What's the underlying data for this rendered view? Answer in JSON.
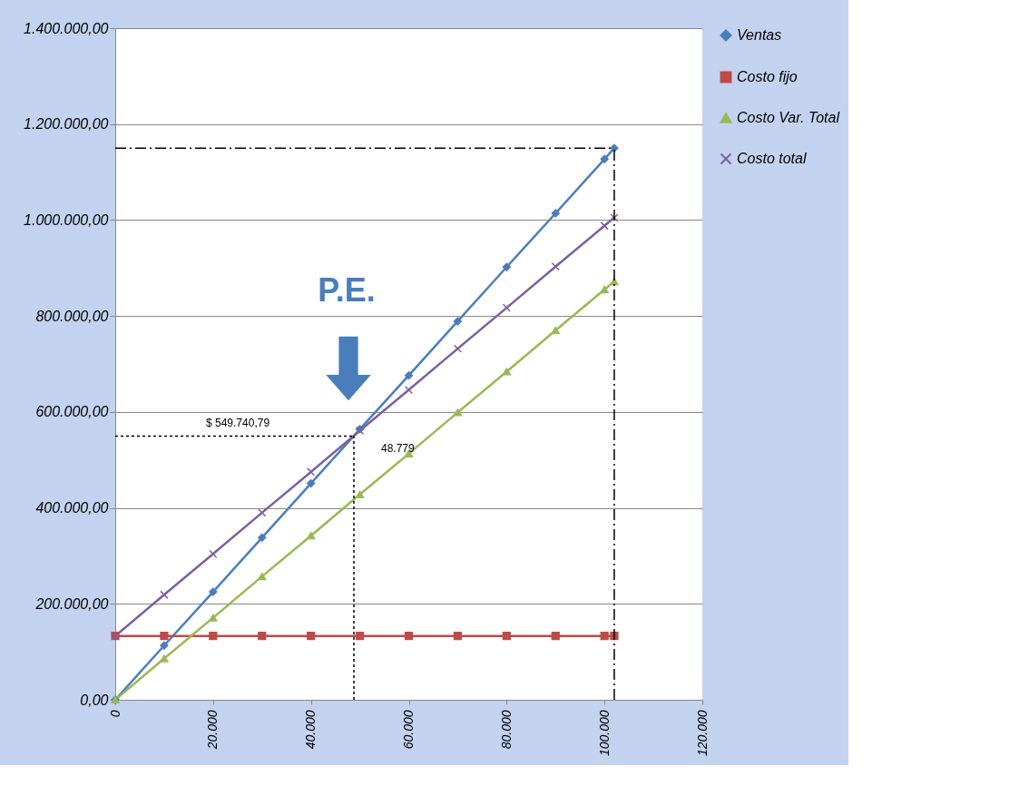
{
  "chart_data": {
    "type": "line",
    "x": [
      0,
      10000,
      20000,
      30000,
      40000,
      50000,
      60000,
      70000,
      80000,
      90000,
      100000,
      102000
    ],
    "series": [
      {
        "name": "Ventas",
        "color": "#4a7ebb",
        "marker": "diamond",
        "values": [
          0,
          113000,
          225000,
          338000,
          451000,
          564000,
          676000,
          789000,
          902000,
          1014000,
          1127000,
          1150000
        ]
      },
      {
        "name": "Costo fijo",
        "color": "#be4b48",
        "marker": "square",
        "values": [
          133000,
          133000,
          133000,
          133000,
          133000,
          133000,
          133000,
          133000,
          133000,
          133000,
          133000,
          133000
        ]
      },
      {
        "name": "Costo Var. Total",
        "color": "#98b954",
        "marker": "triangle",
        "values": [
          0,
          86000,
          171000,
          257000,
          342000,
          428000,
          513000,
          599000,
          684000,
          770000,
          855000,
          872000
        ]
      },
      {
        "name": "Costo total",
        "color": "#7d60a0",
        "marker": "cross",
        "values": [
          133000,
          219000,
          304000,
          390000,
          475000,
          561000,
          646000,
          732000,
          817000,
          903000,
          988000,
          1005000
        ]
      }
    ],
    "xlim": [
      0,
      120000
    ],
    "xticks": [
      0,
      {
        "value": 20000,
        "label": "20.000"
      },
      {
        "value": 40000,
        "label": "40.000"
      },
      {
        "value": 60000,
        "label": "60.000"
      },
      {
        "value": 80000,
        "label": "80.000"
      },
      {
        "value": 100000,
        "label": "100.000"
      },
      {
        "value": 120000,
        "label": "120.000"
      }
    ],
    "ylim": [
      0,
      1400000
    ],
    "yticks": [
      {
        "value": 0,
        "label": "0,00"
      },
      {
        "value": 200000,
        "label": "200.000,00"
      },
      {
        "value": 400000,
        "label": "400.000,00"
      },
      {
        "value": 600000,
        "label": "600.000,00"
      },
      {
        "value": 800000,
        "label": "800.000,00"
      },
      {
        "value": 1000000,
        "label": "1.000.000,00"
      },
      {
        "value": 1200000,
        "label": "1.200.000,00"
      },
      {
        "value": 1400000,
        "label": "1.400.000,00"
      }
    ],
    "grid": "y",
    "legend": "right",
    "ref_lines": [
      {
        "axis": "y",
        "value": 549740.79,
        "label": "$ 549.740,79",
        "line_style": "dotted",
        "color": "#000000"
      },
      {
        "axis": "x",
        "value": 48779,
        "label": "48.779",
        "line_style": "dotted",
        "color": "#000000"
      },
      {
        "axis": "y",
        "value": 1150000,
        "line_style": "dashdot",
        "color": "#000000"
      },
      {
        "axis": "x",
        "value": 102000,
        "line_style": "dashdot",
        "color": "#000000"
      }
    ],
    "annotations": [
      "P.E."
    ]
  }
}
